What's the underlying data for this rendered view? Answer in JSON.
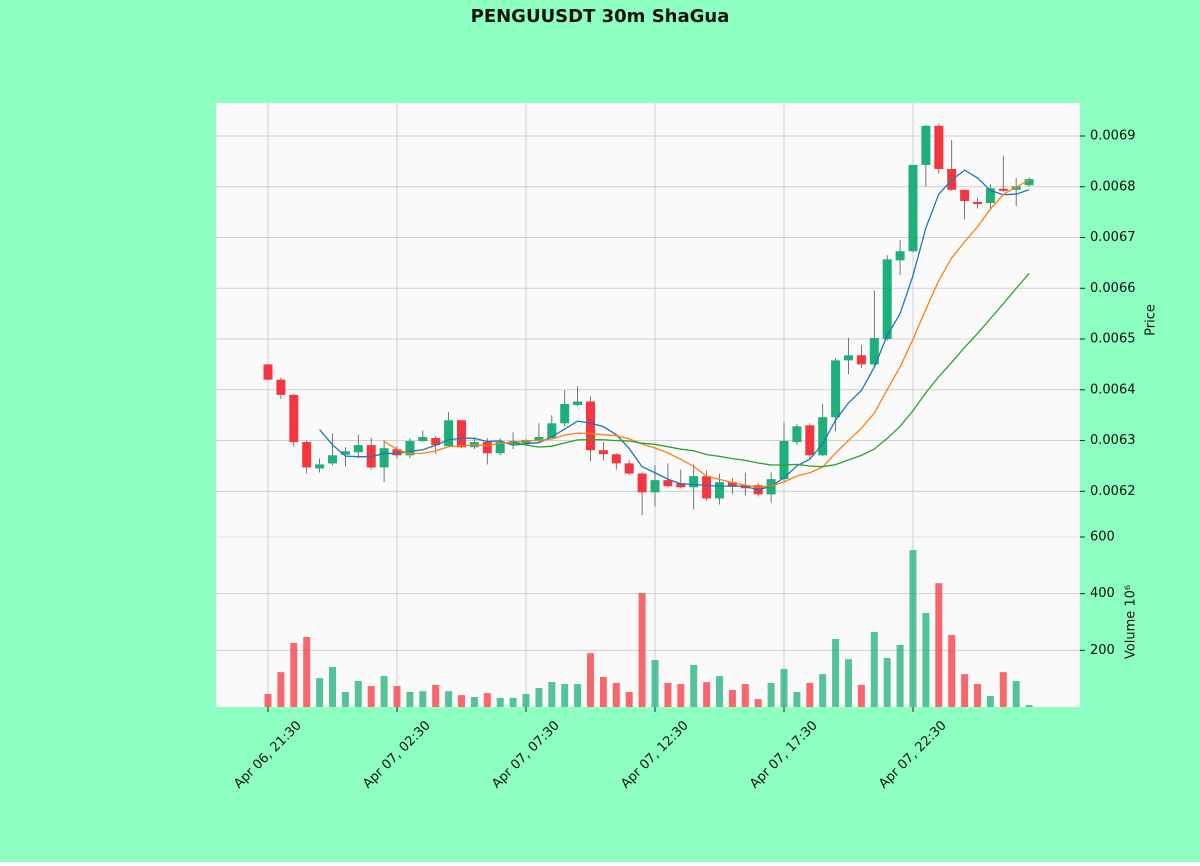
{
  "chart_data": {
    "type": "candlestick",
    "title": "PENGUUSDT 30m ShaGua",
    "y_label": "Price",
    "volume_label": "Volume  10⁶",
    "background": "#8dffc0",
    "up_color": "#1db07a",
    "down_color": "#f5363e",
    "grid": true,
    "x": [
      "Apr 06, 21:30",
      "Apr 06, 22:00",
      "Apr 06, 22:30",
      "Apr 06, 23:00",
      "Apr 06, 23:30",
      "Apr 07, 00:00",
      "Apr 07, 00:30",
      "Apr 07, 01:00",
      "Apr 07, 01:30",
      "Apr 07, 02:00",
      "Apr 07, 02:30",
      "Apr 07, 03:00",
      "Apr 07, 03:30",
      "Apr 07, 04:00",
      "Apr 07, 04:30",
      "Apr 07, 05:00",
      "Apr 07, 05:30",
      "Apr 07, 06:00",
      "Apr 07, 06:30",
      "Apr 07, 07:00",
      "Apr 07, 07:30",
      "Apr 07, 08:00",
      "Apr 07, 08:30",
      "Apr 07, 09:00",
      "Apr 07, 09:30",
      "Apr 07, 10:00",
      "Apr 07, 10:30",
      "Apr 07, 11:00",
      "Apr 07, 11:30",
      "Apr 07, 12:00",
      "Apr 07, 12:30",
      "Apr 07, 13:00",
      "Apr 07, 13:30",
      "Apr 07, 14:00",
      "Apr 07, 14:30",
      "Apr 07, 15:00",
      "Apr 07, 15:30",
      "Apr 07, 16:00",
      "Apr 07, 16:30",
      "Apr 07, 17:00",
      "Apr 07, 17:30",
      "Apr 07, 18:00",
      "Apr 07, 18:30",
      "Apr 07, 19:00",
      "Apr 07, 19:30",
      "Apr 07, 20:00",
      "Apr 07, 20:30",
      "Apr 07, 21:00",
      "Apr 07, 21:30",
      "Apr 07, 22:00",
      "Apr 07, 22:30",
      "Apr 07, 23:00",
      "Apr 07, 23:30",
      "Apr 08, 00:00",
      "Apr 08, 00:30",
      "Apr 08, 01:00",
      "Apr 08, 01:30",
      "Apr 08, 02:00",
      "Apr 08, 02:30",
      "Apr 08, 03:00"
    ],
    "xticks": [
      "Apr 06, 21:30",
      "Apr 07, 02:30",
      "Apr 07, 07:30",
      "Apr 07, 12:30",
      "Apr 07, 17:30",
      "Apr 07, 22:30"
    ],
    "open": [
      0.00645,
      0.00642,
      0.00639,
      0.006297,
      0.006245,
      0.006255,
      0.006272,
      0.006277,
      0.006291,
      0.006247,
      0.006283,
      0.006271,
      0.006299,
      0.006305,
      0.006289,
      0.00634,
      0.006287,
      0.006297,
      0.006275,
      0.006293,
      0.006295,
      0.0063,
      0.006305,
      0.006334,
      0.00637,
      0.006377,
      0.006281,
      0.006273,
      0.006255,
      0.006235,
      0.006198,
      0.006222,
      0.006216,
      0.006208,
      0.00623,
      0.006186,
      0.006218,
      0.006212,
      0.006212,
      0.006194,
      0.006224,
      0.006297,
      0.00633,
      0.006271,
      0.006346,
      0.006458,
      0.006468,
      0.00645,
      0.0065,
      0.006655,
      0.006673,
      0.006843,
      0.00692,
      0.006835,
      0.006794,
      0.00677,
      0.006768,
      0.006796,
      0.006794,
      0.006803
    ],
    "high": [
      0.006452,
      0.006424,
      0.006392,
      0.0063,
      0.006265,
      0.006314,
      0.006287,
      0.006312,
      0.006305,
      0.0063,
      0.006289,
      0.006305,
      0.00632,
      0.006309,
      0.006356,
      0.00634,
      0.006305,
      0.006305,
      0.006305,
      0.006316,
      0.006303,
      0.006334,
      0.00635,
      0.006399,
      0.006407,
      0.006387,
      0.006297,
      0.006275,
      0.006261,
      0.006237,
      0.006251,
      0.006255,
      0.006243,
      0.006253,
      0.006241,
      0.006235,
      0.006226,
      0.006237,
      0.006216,
      0.006237,
      0.006336,
      0.006332,
      0.006334,
      0.006372,
      0.006462,
      0.006502,
      0.006488,
      0.006596,
      0.006665,
      0.006695,
      0.006843,
      0.006922,
      0.006924,
      0.006892,
      0.006794,
      0.006778,
      0.006805,
      0.006861,
      0.006817,
      0.006819
    ],
    "low": [
      0.006418,
      0.006382,
      0.006288,
      0.006235,
      0.006237,
      0.006251,
      0.006249,
      0.006265,
      0.006243,
      0.006218,
      0.006265,
      0.006265,
      0.006297,
      0.006274,
      0.006287,
      0.006285,
      0.006283,
      0.006253,
      0.006271,
      0.006283,
      0.00629,
      0.006297,
      0.006305,
      0.006328,
      0.006368,
      0.006259,
      0.006261,
      0.006243,
      0.006232,
      0.006153,
      0.00617,
      0.006208,
      0.006206,
      0.006164,
      0.006182,
      0.006174,
      0.006194,
      0.006192,
      0.00619,
      0.006178,
      0.006218,
      0.006291,
      0.006265,
      0.006269,
      0.006318,
      0.006431,
      0.006443,
      0.006445,
      0.006497,
      0.006626,
      0.006671,
      0.0068,
      0.006826,
      0.006792,
      0.006736,
      0.006757,
      0.006754,
      0.00679,
      0.006762,
      0.0068
    ],
    "close": [
      0.00642,
      0.00639,
      0.006297,
      0.006247,
      0.006253,
      0.006271,
      0.006279,
      0.006291,
      0.006247,
      0.006285,
      0.006271,
      0.006299,
      0.006307,
      0.006291,
      0.00634,
      0.006287,
      0.006297,
      0.006275,
      0.006297,
      0.006299,
      0.006301,
      0.006307,
      0.006334,
      0.006372,
      0.006377,
      0.006281,
      0.006273,
      0.006255,
      0.006235,
      0.006198,
      0.006222,
      0.00621,
      0.006208,
      0.00623,
      0.006186,
      0.006218,
      0.006209,
      0.006206,
      0.006194,
      0.006224,
      0.006299,
      0.006328,
      0.006271,
      0.006346,
      0.006458,
      0.006468,
      0.00645,
      0.006502,
      0.006657,
      0.006673,
      0.006843,
      0.00692,
      0.006835,
      0.006794,
      0.006772,
      0.006766,
      0.006797,
      0.006792,
      0.006801,
      0.006815
    ],
    "volume": [
      46,
      123,
      226,
      247,
      102,
      141,
      53,
      92,
      74,
      109,
      74,
      53,
      56,
      78,
      56,
      42,
      35,
      49,
      32,
      32,
      46,
      67,
      88,
      81,
      81,
      190,
      106,
      85,
      53,
      402,
      166,
      85,
      81,
      148,
      88,
      109,
      60,
      81,
      28,
      85,
      134,
      53,
      85,
      116,
      240,
      169,
      78,
      265,
      173,
      219,
      554,
      332,
      437,
      254,
      116,
      81,
      39,
      123,
      92,
      7
    ],
    "moving_averages": [
      {
        "color": "#1f77b4",
        "values": [
          null,
          null,
          null,
          null,
          0.0063214,
          0.0062916,
          0.0062694,
          0.0062682,
          0.0062682,
          0.0062746,
          0.0062746,
          0.0062786,
          0.0062818,
          0.0062906,
          0.0063016,
          0.0063048,
          0.0063044,
          0.006298,
          0.0062992,
          0.006291,
          0.0062938,
          0.0062958,
          0.0063076,
          0.0063226,
          0.0063382,
          0.0063342,
          0.0063274,
          0.0063116,
          0.0062842,
          0.0062484,
          0.0062366,
          0.006224,
          0.0062146,
          0.0062136,
          0.0062112,
          0.0062104,
          0.0062102,
          0.0062098,
          0.0062026,
          0.0062102,
          0.0062264,
          0.0062502,
          0.0062632,
          0.0062936,
          0.0063404,
          0.0063742,
          0.0063986,
          0.0064448,
          0.006507,
          0.00655,
          0.006625,
          0.006719,
          0.0067856,
          0.006813,
          0.0068328,
          0.0068174,
          0.0067928,
          0.0067842,
          0.0067856,
          0.0067942
        ]
      },
      {
        "color": "#ff7f0e",
        "values": [
          null,
          null,
          null,
          null,
          null,
          null,
          null,
          null,
          null,
          0.006298,
          0.0062831,
          0.006274,
          0.006275,
          0.0062794,
          0.0062881,
          0.0062897,
          0.0062915,
          0.0062899,
          0.0062949,
          0.0062963,
          0.0062993,
          0.0063001,
          0.0063028,
          0.0063109,
          0.0063146,
          0.006314,
          0.0063116,
          0.0063096,
          0.0063034,
          0.0062933,
          0.0062854,
          0.0062757,
          0.0062631,
          0.0062489,
          0.0062298,
          0.0062235,
          0.0062171,
          0.0062122,
          0.0062081,
          0.0062107,
          0.0062184,
          0.0062302,
          0.0062365,
          0.0062481,
          0.0062753,
          0.0063003,
          0.0063244,
          0.006354,
          0.0064003,
          0.0064452,
          0.0064996,
          0.0065588,
          0.0066152,
          0.00666,
          0.0066914,
          0.0067212,
          0.0067559,
          0.0067849,
          0.0067993,
          0.0068135
        ]
      },
      {
        "color": "#2ca02c",
        "values": [
          null,
          null,
          null,
          null,
          null,
          null,
          null,
          null,
          null,
          null,
          null,
          null,
          null,
          null,
          null,
          null,
          null,
          null,
          null,
          0.0062972,
          0.0062912,
          0.0062871,
          0.0062889,
          0.0062952,
          0.0063014,
          0.0063019,
          0.0063016,
          0.0062998,
          0.0062992,
          0.0062948,
          0.0062924,
          0.0062879,
          0.006283,
          0.0062799,
          0.0062722,
          0.0062688,
          0.0062644,
          0.0062609,
          0.0062558,
          0.006252,
          0.0062519,
          0.006253,
          0.0062498,
          0.0062485,
          0.0062526,
          0.0062619,
          0.0062708,
          0.0062831,
          0.0063042,
          0.006328,
          0.006359,
          0.0063945,
          0.0064259,
          0.0064541,
          0.0064834,
          0.0065108,
          0.0065402,
          0.0065695,
          0.0065998,
          0.0066294
        ]
      }
    ],
    "ylim": [
      0.00611,
      0.006965
    ],
    "yticks": [
      0.0062,
      0.0063,
      0.0064,
      0.0065,
      0.0066,
      0.0067,
      0.0068,
      0.0069
    ],
    "volume_ylim": [
      0,
      600
    ],
    "volume_yticks": [
      200,
      400,
      600
    ]
  }
}
